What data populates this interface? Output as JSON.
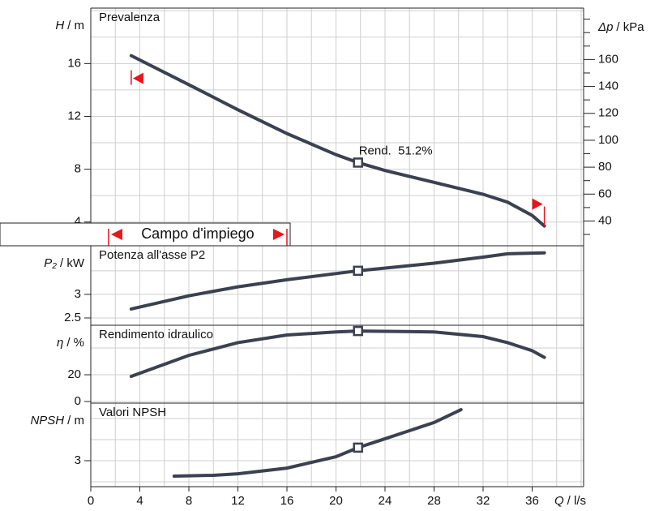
{
  "chart_data": [
    {
      "type": "line",
      "title": "Prevalenza",
      "ylabel_symbol": "H",
      "ylabel_unit": "/ m",
      "y2label_symbol": "Δp",
      "y2label_unit": "/ kPa",
      "xlim": [
        0,
        40.2
      ],
      "xgrid": [
        2,
        4,
        6,
        8,
        10,
        12,
        14,
        16,
        18,
        20,
        22,
        24,
        26,
        28,
        30,
        32,
        34,
        36,
        38,
        40
      ],
      "ylim": [
        2.2,
        20.2
      ],
      "yticks": [
        4,
        8,
        12,
        16
      ],
      "ygrid": [
        4,
        6,
        8,
        10,
        12,
        14,
        16,
        18,
        20
      ],
      "y2lim": [
        21.6,
        198.2
      ],
      "y2ticks": [
        40,
        60,
        80,
        100,
        120,
        140,
        160
      ],
      "y2minor": [
        30,
        50,
        70,
        90,
        110,
        130,
        150,
        170,
        180,
        190
      ],
      "series": [
        {
          "color": "#3b4150",
          "x": [
            3.3,
            8,
            12,
            16,
            20,
            21.8,
            24,
            28,
            32,
            34,
            36,
            37
          ],
          "values": [
            16.6,
            14.4,
            12.5,
            10.7,
            9.1,
            8.5,
            7.9,
            7.0,
            6.1,
            5.5,
            4.5,
            3.7
          ]
        }
      ],
      "operating_point": {
        "x": 21.8,
        "y": 8.5,
        "label": "Rend.  51.2%"
      },
      "annotation": {
        "text": "Campo d'impiego",
        "range": [
          1.45,
          16
        ],
        "color": "#e8151b"
      }
    },
    {
      "type": "line",
      "title": "Potenza all'asse P2",
      "ylabel_symbol": "P₂",
      "ylabel_unit": "/ kW",
      "xlim": [
        0,
        40.2
      ],
      "xgrid": [
        2,
        4,
        6,
        8,
        10,
        12,
        14,
        16,
        18,
        20,
        22,
        24,
        26,
        28,
        30,
        32,
        34,
        36,
        38,
        40
      ],
      "ylim": [
        2.345,
        4.03
      ],
      "yticks": [
        2.5,
        3
      ],
      "ygrid": [
        2.5,
        3,
        3.5
      ],
      "series": [
        {
          "color": "#3b4150",
          "x": [
            3.3,
            8,
            12,
            16,
            21.8,
            28,
            32,
            34,
            37
          ],
          "values": [
            2.69,
            2.97,
            3.16,
            3.31,
            3.5,
            3.66,
            3.79,
            3.86,
            3.88
          ]
        }
      ],
      "operating_point": {
        "x": 21.8,
        "y": 3.5
      }
    },
    {
      "type": "line",
      "title": "Rendimento idraulico",
      "ylabel_symbol": "η",
      "ylabel_unit": "/ %",
      "xlim": [
        0,
        40.2
      ],
      "xgrid": [
        2,
        4,
        6,
        8,
        10,
        12,
        14,
        16,
        18,
        20,
        22,
        24,
        26,
        28,
        30,
        32,
        34,
        36,
        38,
        40
      ],
      "ylim": [
        -1.2,
        57
      ],
      "yticks": [
        0,
        20
      ],
      "ygrid": [
        0,
        20,
        40
      ],
      "series": [
        {
          "color": "#3b4150",
          "x": [
            3.3,
            8,
            12,
            16,
            20,
            21.8,
            28,
            32,
            34,
            36,
            37
          ],
          "values": [
            18.8,
            34.5,
            44,
            49.7,
            52,
            52.7,
            52,
            48.5,
            44,
            38,
            33
          ]
        }
      ],
      "operating_point": {
        "x": 21.8,
        "y": 52.7
      }
    },
    {
      "type": "line",
      "title": "Valori NPSH",
      "ylabel_symbol": "NPSH",
      "ylabel_unit": "/ m",
      "xlim": [
        0,
        40.2
      ],
      "xgrid": [
        2,
        4,
        6,
        8,
        10,
        12,
        14,
        16,
        18,
        20,
        22,
        24,
        26,
        28,
        30,
        32,
        34,
        36,
        38,
        40
      ],
      "ylim": [
        1.77,
        5.73
      ],
      "yticks": [
        3
      ],
      "ygrid": [
        2,
        3,
        4,
        5
      ],
      "xticks": [
        0,
        4,
        8,
        12,
        16,
        20,
        24,
        28,
        32,
        36
      ],
      "xlabel_symbol": "Q",
      "xlabel_unit": "/ l/s",
      "series": [
        {
          "color": "#3b4150",
          "x": [
            6.8,
            10,
            12,
            16,
            20,
            21.8,
            24,
            28,
            30.2
          ],
          "values": [
            2.27,
            2.31,
            2.38,
            2.65,
            3.19,
            3.62,
            4.04,
            4.81,
            5.42
          ]
        }
      ],
      "operating_point": {
        "x": 21.8,
        "y": 3.62
      }
    }
  ]
}
